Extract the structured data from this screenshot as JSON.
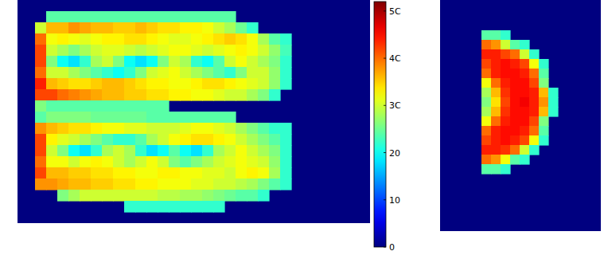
{
  "chart_data": {
    "type": "heatmap",
    "images": [
      {
        "cells": [
          [
            null,
            24,
            24,
            24,
            24,
            24,
            24,
            24,
            24,
            24,
            24,
            24,
            24,
            24,
            24,
            24,
            24,
            24,
            null,
            null,
            null,
            null,
            null
          ],
          [
            30,
            36,
            36,
            38,
            37,
            36,
            36,
            35,
            35,
            36,
            35,
            34,
            34,
            33,
            33,
            32,
            30,
            28,
            25,
            22,
            null,
            null,
            null
          ],
          [
            40,
            32,
            33,
            32,
            31,
            32,
            33,
            33,
            34,
            34,
            33,
            32,
            31,
            31,
            32,
            33,
            34,
            35,
            34,
            32,
            28,
            24,
            22
          ],
          [
            42,
            30,
            28,
            26,
            28,
            30,
            31,
            31,
            30,
            29,
            30,
            31,
            32,
            32,
            31,
            30,
            31,
            32,
            33,
            32,
            30,
            27,
            23
          ],
          [
            42,
            26,
            20,
            18,
            22,
            28,
            30,
            26,
            20,
            18,
            20,
            26,
            30,
            28,
            22,
            20,
            24,
            30,
            32,
            30,
            28,
            26,
            22
          ],
          [
            40,
            30,
            30,
            28,
            26,
            24,
            22,
            20,
            22,
            26,
            30,
            31,
            32,
            30,
            28,
            26,
            24,
            22,
            26,
            30,
            30,
            27,
            22
          ],
          [
            44,
            36,
            35,
            34,
            34,
            35,
            36,
            36,
            35,
            34,
            33,
            33,
            32,
            32,
            33,
            34,
            34,
            33,
            32,
            31,
            30,
            27,
            22
          ],
          [
            42,
            42,
            40,
            39,
            38,
            37,
            36,
            36,
            35,
            35,
            34,
            34,
            33,
            33,
            32,
            32,
            31,
            30,
            30,
            28,
            26,
            22,
            null
          ],
          [
            26,
            24,
            24,
            24,
            24,
            24,
            24,
            24,
            24,
            24,
            24,
            24,
            null,
            null,
            null,
            null,
            null,
            null,
            null,
            null,
            null,
            null,
            null
          ],
          [
            24,
            26,
            26,
            26,
            26,
            25,
            25,
            25,
            25,
            25,
            24,
            24,
            24,
            24,
            24,
            24,
            24,
            24,
            null,
            null,
            null,
            null,
            null
          ],
          [
            38,
            36,
            35,
            34,
            34,
            33,
            32,
            32,
            31,
            31,
            30,
            30,
            30,
            31,
            32,
            32,
            31,
            30,
            28,
            26,
            24,
            22,
            22
          ],
          [
            42,
            33,
            31,
            30,
            28,
            26,
            24,
            22,
            22,
            24,
            28,
            30,
            32,
            33,
            34,
            34,
            33,
            32,
            30,
            28,
            26,
            24,
            22
          ],
          [
            42,
            30,
            26,
            20,
            18,
            22,
            28,
            30,
            28,
            22,
            18,
            20,
            24,
            20,
            18,
            22,
            28,
            30,
            32,
            30,
            28,
            26,
            22
          ],
          [
            40,
            32,
            32,
            30,
            32,
            33,
            32,
            30,
            28,
            30,
            32,
            30,
            26,
            24,
            26,
            28,
            30,
            31,
            32,
            31,
            30,
            27,
            22
          ],
          [
            42,
            36,
            36,
            35,
            35,
            34,
            34,
            33,
            33,
            32,
            32,
            33,
            33,
            32,
            32,
            31,
            31,
            30,
            32,
            33,
            32,
            28,
            22
          ],
          [
            38,
            38,
            37,
            36,
            36,
            35,
            35,
            34,
            34,
            33,
            33,
            32,
            32,
            32,
            31,
            31,
            30,
            30,
            29,
            28,
            26,
            24,
            22
          ],
          [
            null,
            null,
            26,
            28,
            30,
            30,
            30,
            30,
            30,
            30,
            30,
            29,
            29,
            28,
            28,
            27,
            26,
            25,
            24,
            24,
            22,
            null,
            null
          ],
          [
            null,
            null,
            null,
            null,
            null,
            null,
            null,
            null,
            22,
            22,
            22,
            22,
            22,
            22,
            22,
            22,
            22,
            null,
            null,
            null,
            null,
            null,
            null
          ]
        ]
      },
      {
        "cells": [
          [
            24,
            24,
            22,
            null,
            null,
            null,
            null,
            null
          ],
          [
            40,
            38,
            30,
            24,
            22,
            null,
            null,
            null
          ],
          [
            44,
            44,
            42,
            40,
            30,
            22,
            null,
            null
          ],
          [
            42,
            44,
            45,
            44,
            42,
            32,
            22,
            null
          ],
          [
            40,
            44,
            45,
            45,
            44,
            40,
            24,
            null
          ],
          [
            32,
            40,
            44,
            45,
            45,
            42,
            26,
            null
          ],
          [
            28,
            36,
            43,
            45,
            45,
            44,
            36,
            22
          ],
          [
            26,
            34,
            42,
            45,
            46,
            44,
            38,
            22
          ],
          [
            28,
            36,
            43,
            45,
            45,
            44,
            36,
            22
          ],
          [
            32,
            40,
            44,
            45,
            45,
            42,
            26,
            null
          ],
          [
            40,
            44,
            45,
            45,
            44,
            40,
            24,
            null
          ],
          [
            42,
            44,
            45,
            44,
            42,
            32,
            22,
            null
          ],
          [
            44,
            44,
            43,
            40,
            30,
            22,
            null,
            null
          ],
          [
            40,
            38,
            32,
            24,
            22,
            null,
            null,
            null
          ],
          [
            24,
            24,
            22,
            null,
            null,
            null,
            null,
            null
          ]
        ]
      }
    ],
    "colorbar": {
      "range": [
        0,
        52
      ],
      "ticks": [
        {
          "value": 50,
          "label": "5C"
        },
        {
          "value": 40,
          "label": "4C"
        },
        {
          "value": 30,
          "label": "3C"
        },
        20,
        10,
        0
      ]
    }
  }
}
